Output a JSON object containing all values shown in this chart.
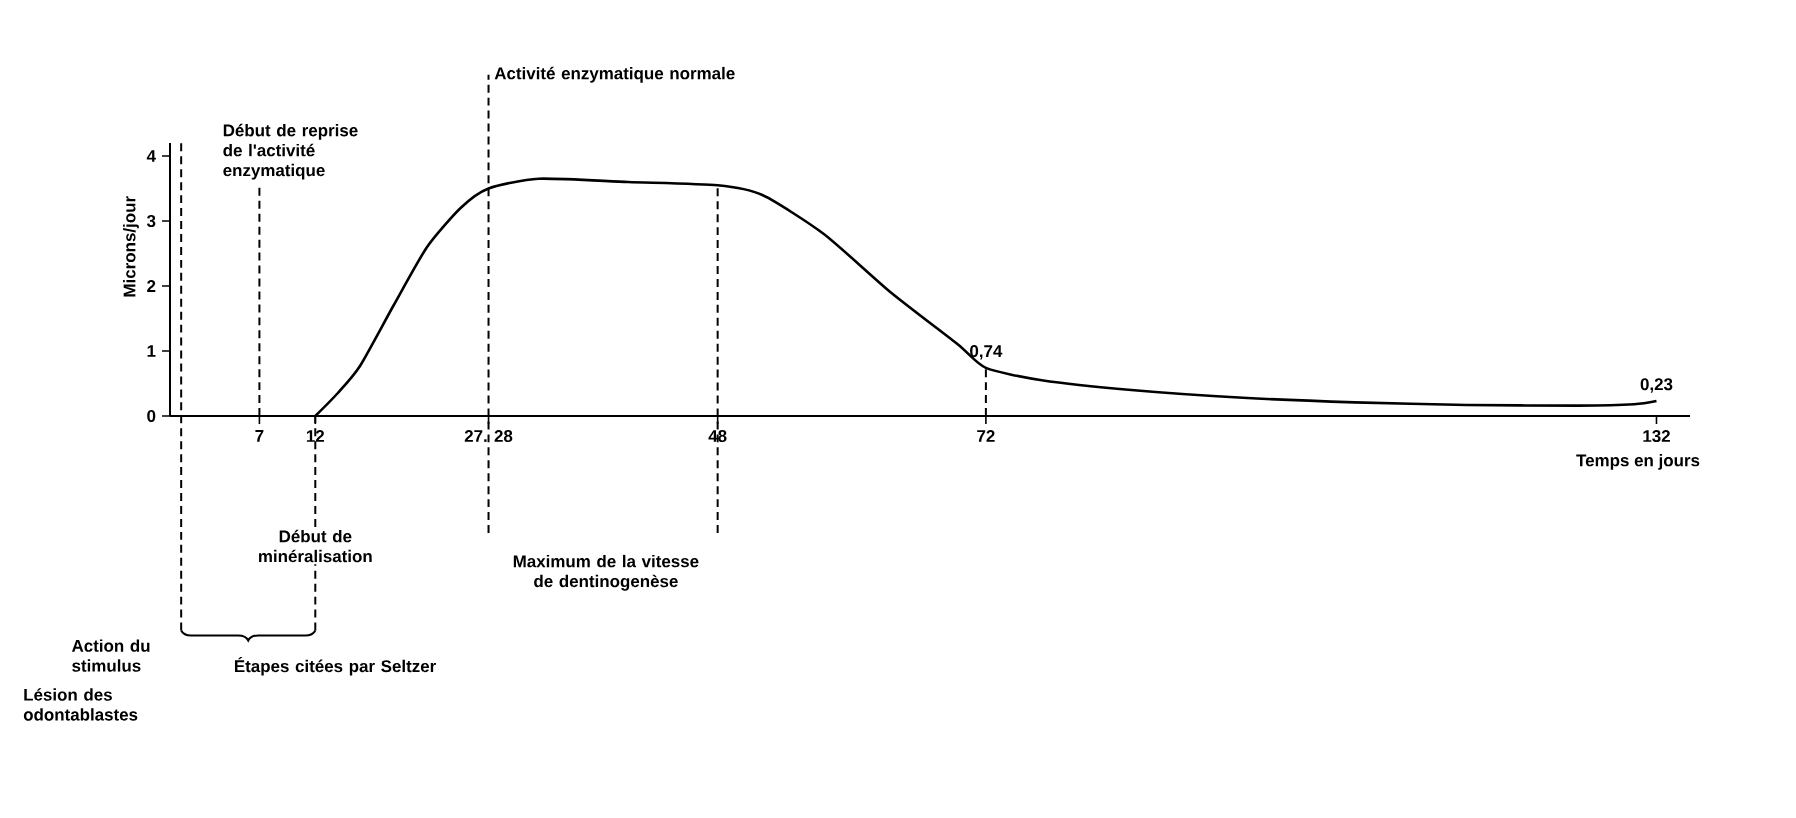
{
  "chart_data": {
    "type": "line",
    "xlabel": "Temps en jours",
    "ylabel": "Microns/jour",
    "xlim": [
      -1,
      135
    ],
    "ylim": [
      0,
      4.2
    ],
    "xticks": [
      7,
      12,
      {
        "value": 27.5,
        "label": "27. 28"
      },
      48,
      72,
      132
    ],
    "yticks": [
      0,
      1,
      2,
      3,
      4
    ],
    "series": [
      {
        "color": "#000000",
        "x": [
          12,
          14,
          16,
          19,
          22,
          25,
          27.5,
          32,
          40,
          48,
          52,
          57.5,
          63.5,
          69.5,
          72,
          77,
          85,
          95,
          105,
          115,
          125,
          130,
          132
        ],
        "values": [
          0,
          0.35,
          0.77,
          1.7,
          2.6,
          3.2,
          3.5,
          3.65,
          3.6,
          3.55,
          3.4,
          2.8,
          1.9,
          1.1,
          0.74,
          0.55,
          0.4,
          0.28,
          0.21,
          0.17,
          0.16,
          0.18,
          0.23
        ]
      }
    ],
    "ref_lines": [
      {
        "axis": "x",
        "value": 0,
        "label": "Action du stimulus",
        "line_style": "dashed"
      },
      {
        "axis": "x",
        "value": 7,
        "label": "Début de reprise de l'activité enzymatique",
        "line_style": "dashed"
      },
      {
        "axis": "x",
        "value": 12,
        "label": "Début de minéralisation",
        "line_style": "dashed"
      },
      {
        "axis": "x",
        "value": 27.5,
        "label": "Activité enzymatique normale",
        "line_style": "dashed"
      },
      {
        "axis": "x",
        "value": 48,
        "line_style": "dashed"
      },
      {
        "axis": "x",
        "value": 72,
        "line_style": "dashed"
      }
    ],
    "annotations": [
      {
        "text": "0,74",
        "x": 72,
        "y": 0.74
      },
      {
        "text": "0,23",
        "x": 132,
        "y": 0.23
      },
      "Maximum de la vitesse de dentinogenèse",
      "Lésion des odontablastes",
      "Étapes citées par Seltzer"
    ]
  }
}
